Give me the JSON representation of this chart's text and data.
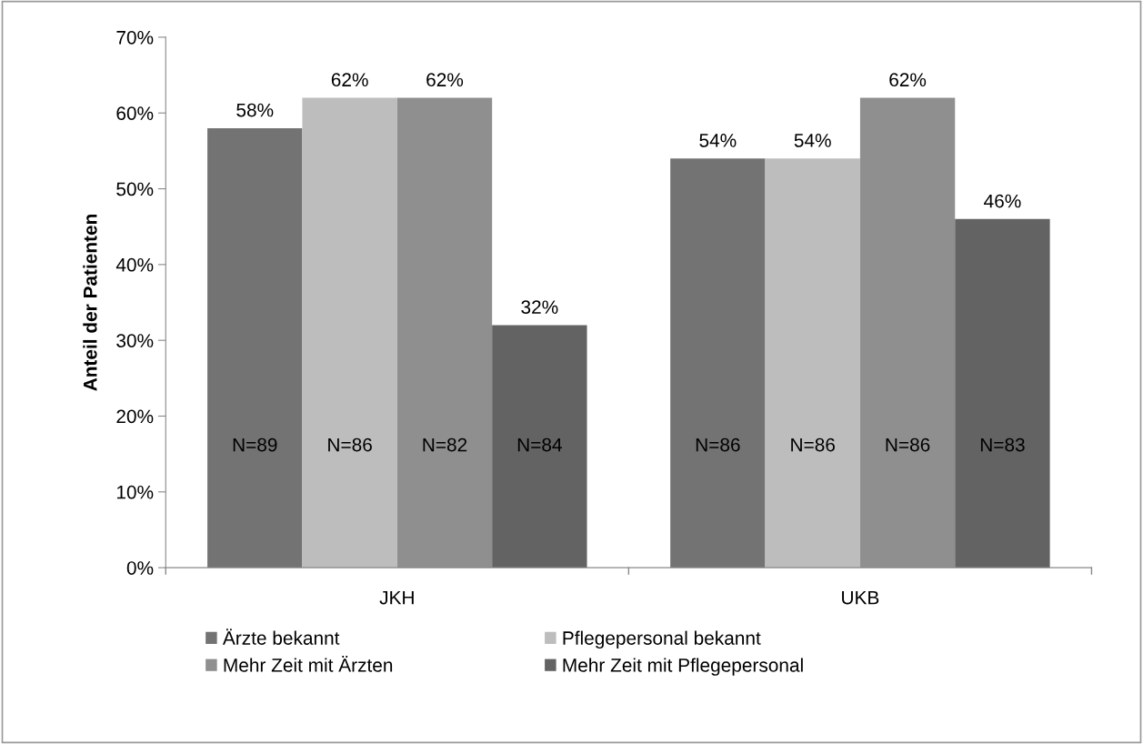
{
  "chart_data": {
    "type": "bar",
    "ylabel": "Anteil der Patienten",
    "categories": [
      "JKH",
      "UKB"
    ],
    "series": [
      {
        "name": "Ärzte bekannt",
        "color": "#737373",
        "values": [
          58,
          54
        ],
        "value_labels": [
          "58%",
          "54%"
        ]
      },
      {
        "name": "Pflegepersonal bekannt",
        "color": "#bdbdbd",
        "values": [
          62,
          54
        ],
        "value_labels": [
          "62%",
          "54%"
        ]
      },
      {
        "name": "Mehr Zeit mit Ärzten",
        "color": "#8f8f8f",
        "values": [
          62,
          62
        ],
        "value_labels": [
          "62%",
          "62%"
        ]
      },
      {
        "name": "Mehr Zeit mit Pflegepersonal",
        "color": "#636363",
        "values": [
          32,
          46
        ],
        "value_labels": [
          "32%",
          "46%"
        ]
      }
    ],
    "ylim": [
      0,
      70
    ],
    "yticks": [
      {
        "value": 0,
        "label": "0%"
      },
      {
        "value": 10,
        "label": "10%"
      },
      {
        "value": 20,
        "label": "20%"
      },
      {
        "value": 30,
        "label": "30%"
      },
      {
        "value": 40,
        "label": "40%"
      },
      {
        "value": 50,
        "label": "50%"
      },
      {
        "value": 60,
        "label": "60%"
      },
      {
        "value": 70,
        "label": "70%"
      }
    ],
    "annotations": [
      "N=89",
      "N=86",
      "N=82",
      "N=84",
      "N=86",
      "N=86",
      "N=86",
      "N=83"
    ],
    "grid": false,
    "legend": "bottom"
  }
}
